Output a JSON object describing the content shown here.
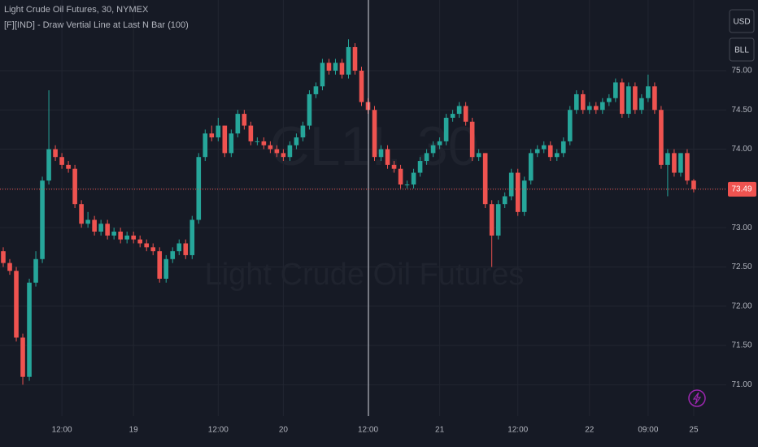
{
  "chart_data": {
    "type": "candlestick",
    "title": "Light Crude Oil Futures, 30, NYMEX",
    "indicator": "[F][IND] - Draw Vertial Line at Last N Bar (100)",
    "watermark_symbol": "CL1!, 30",
    "watermark_name": "Light Crude Oil Futures",
    "currency_button": "USD",
    "unit_button": "BLL",
    "up_color": "#26a69a",
    "down_color": "#ef5350",
    "grid": true,
    "ylim": [
      70.6,
      75.9
    ],
    "yticks": [
      {
        "value": 71,
        "label": "71.00"
      },
      {
        "value": 71.5,
        "label": "71.50"
      },
      {
        "value": 72,
        "label": "72.00"
      },
      {
        "value": 72.5,
        "label": "72.50"
      },
      {
        "value": 73,
        "label": "73.00"
      },
      {
        "value": 73.5,
        "label": "73.50"
      },
      {
        "value": 74,
        "label": "74.00"
      },
      {
        "value": 74.5,
        "label": "74.50"
      },
      {
        "value": 75,
        "label": "75.00"
      }
    ],
    "xlim": [
      -0.5,
      111
    ],
    "xticks": [
      {
        "value": 9,
        "label": "12:00"
      },
      {
        "value": 20,
        "label": "19"
      },
      {
        "value": 33,
        "label": "12:00"
      },
      {
        "value": 43,
        "label": "20"
      },
      {
        "value": 56,
        "label": "12:00"
      },
      {
        "value": 67,
        "label": "21"
      },
      {
        "value": 79,
        "label": "12:00"
      },
      {
        "value": 90,
        "label": "22"
      },
      {
        "value": 99,
        "label": "09:00"
      },
      {
        "value": 106,
        "label": "25"
      }
    ],
    "open": [
      72.7,
      72.55,
      72.45,
      71.6,
      71.1,
      72.3,
      72.6,
      73.6,
      74.0,
      73.9,
      73.8,
      73.75,
      73.3,
      73.05,
      73.1,
      72.95,
      73.05,
      72.9,
      72.95,
      72.85,
      72.9,
      72.85,
      72.8,
      72.75,
      72.7,
      72.35,
      72.6,
      72.7,
      72.8,
      72.65,
      73.1,
      73.9,
      74.2,
      74.15,
      74.3,
      73.95,
      74.2,
      74.45,
      74.3,
      74.1,
      74.1,
      74.05,
      74.0,
      73.95,
      73.9,
      74.05,
      74.15,
      74.3,
      74.7,
      74.8,
      75.1,
      75.0,
      75.1,
      74.95,
      75.3,
      75.0,
      74.6,
      74.5,
      73.9,
      74.0,
      73.8,
      73.75,
      73.55,
      73.55,
      73.7,
      73.85,
      73.95,
      74.05,
      74.1,
      74.4,
      74.45,
      74.55,
      74.35,
      73.9,
      73.95,
      73.3,
      72.9,
      73.3,
      73.4,
      73.7,
      73.2,
      73.6,
      73.95,
      74.0,
      74.05,
      73.9,
      73.95,
      74.1,
      74.5,
      74.7,
      74.5,
      74.55,
      74.5,
      74.6,
      74.65,
      74.85,
      74.45,
      74.8,
      74.5,
      74.65,
      74.8,
      74.5,
      73.8,
      73.95,
      73.7,
      73.95,
      73.6
    ],
    "high": [
      72.75,
      72.6,
      72.5,
      71.65,
      72.35,
      72.7,
      73.65,
      74.75,
      74.05,
      73.95,
      73.85,
      73.8,
      73.35,
      73.2,
      73.15,
      73.1,
      73.1,
      73.0,
      73.0,
      72.95,
      72.95,
      72.9,
      72.85,
      72.8,
      72.75,
      72.65,
      72.75,
      72.85,
      72.85,
      73.15,
      73.95,
      74.25,
      74.3,
      74.4,
      74.3,
      74.25,
      74.5,
      74.5,
      74.35,
      74.15,
      74.15,
      74.1,
      74.05,
      74.0,
      74.1,
      74.2,
      74.35,
      74.75,
      74.85,
      75.15,
      75.15,
      75.15,
      75.15,
      75.4,
      75.35,
      75.05,
      74.65,
      74.55,
      74.05,
      74.05,
      73.85,
      73.8,
      73.6,
      73.75,
      73.9,
      74.0,
      74.1,
      74.15,
      74.45,
      74.5,
      74.6,
      74.6,
      74.4,
      74.0,
      73.95,
      73.35,
      73.35,
      73.45,
      73.75,
      73.75,
      73.65,
      74.0,
      74.05,
      74.1,
      74.1,
      74.0,
      74.15,
      74.55,
      74.75,
      74.75,
      74.6,
      74.6,
      74.65,
      74.7,
      74.9,
      74.9,
      74.85,
      74.85,
      74.7,
      74.95,
      74.85,
      74.55,
      74.0,
      74.0,
      73.95,
      74.0,
      73.62
    ],
    "low": [
      72.5,
      72.4,
      71.55,
      71.0,
      71.05,
      72.25,
      72.55,
      73.55,
      73.85,
      73.75,
      73.7,
      73.25,
      73.0,
      73.0,
      72.9,
      72.9,
      72.85,
      72.85,
      72.8,
      72.8,
      72.8,
      72.75,
      72.7,
      72.65,
      72.3,
      72.3,
      72.55,
      72.65,
      72.6,
      72.6,
      73.05,
      73.85,
      74.1,
      74.1,
      73.9,
      73.9,
      74.15,
      74.25,
      74.05,
      74.05,
      74.0,
      73.95,
      73.9,
      73.85,
      73.85,
      74.0,
      74.1,
      74.25,
      74.65,
      74.75,
      74.95,
      74.95,
      74.9,
      74.9,
      74.95,
      74.55,
      74.45,
      73.85,
      73.85,
      73.75,
      73.7,
      73.5,
      73.5,
      73.5,
      73.65,
      73.8,
      73.9,
      74.0,
      74.05,
      74.35,
      74.4,
      74.3,
      73.85,
      73.85,
      73.25,
      72.5,
      72.85,
      73.25,
      73.35,
      73.15,
      73.15,
      73.55,
      73.9,
      73.95,
      73.85,
      73.85,
      73.9,
      74.05,
      74.45,
      74.45,
      74.45,
      74.45,
      74.45,
      74.55,
      74.6,
      74.4,
      74.4,
      74.45,
      74.45,
      74.6,
      74.45,
      73.75,
      73.4,
      73.65,
      73.65,
      73.55,
      73.45
    ],
    "close": [
      72.55,
      72.45,
      71.6,
      71.1,
      72.3,
      72.6,
      73.6,
      74.0,
      73.9,
      73.8,
      73.75,
      73.3,
      73.05,
      73.1,
      72.95,
      73.05,
      72.9,
      72.95,
      72.85,
      72.9,
      72.85,
      72.8,
      72.75,
      72.7,
      72.35,
      72.6,
      72.7,
      72.8,
      72.65,
      73.1,
      73.9,
      74.2,
      74.15,
      74.3,
      73.95,
      74.2,
      74.45,
      74.3,
      74.1,
      74.1,
      74.05,
      74.0,
      73.95,
      73.9,
      74.05,
      74.15,
      74.3,
      74.7,
      74.8,
      75.1,
      75.0,
      75.1,
      74.95,
      75.3,
      75.0,
      74.6,
      74.5,
      73.9,
      74.0,
      73.8,
      73.75,
      73.55,
      73.55,
      73.7,
      73.85,
      73.95,
      74.05,
      74.1,
      74.4,
      74.45,
      74.55,
      74.35,
      73.9,
      73.95,
      73.3,
      72.9,
      73.3,
      73.4,
      73.7,
      73.2,
      73.6,
      73.95,
      74.0,
      74.05,
      73.9,
      73.95,
      74.1,
      74.5,
      74.7,
      74.5,
      74.55,
      74.5,
      74.6,
      74.65,
      74.85,
      74.45,
      74.8,
      74.5,
      74.65,
      74.8,
      74.5,
      73.8,
      73.95,
      73.7,
      73.95,
      73.6,
      73.49
    ]
  }
}
